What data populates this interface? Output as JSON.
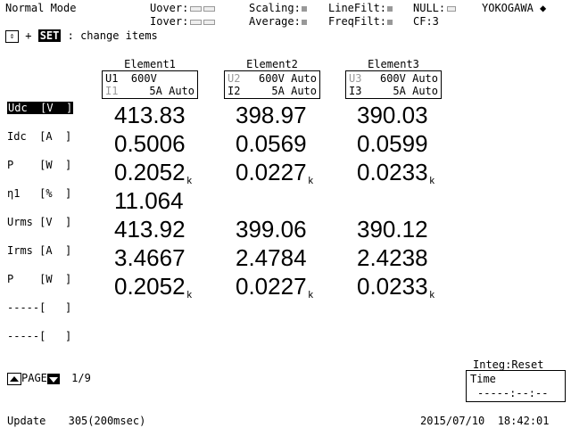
{
  "status": {
    "mode": "Normal Mode",
    "uover_label": "Uover:",
    "iover_label": "Iover:",
    "scaling_label": "Scaling:",
    "average_label": "Average:",
    "linefilt_label": "LineFilt:",
    "freqfilt_label": "FreqFilt:",
    "null_label": "NULL:",
    "cf_label": "CF:3",
    "brand": "YOKOGAWA"
  },
  "hint": {
    "set_key": "SET",
    "text": ": change items"
  },
  "elements": [
    {
      "title": "Element1",
      "u_label": "U1",
      "u_range": "600V",
      "i_label": "I1",
      "i_range": "5A Auto"
    },
    {
      "title": "Element2",
      "u_label": "U2",
      "u_range": "600V Auto",
      "i_label": "I2",
      "i_range": "5A Auto"
    },
    {
      "title": "Element3",
      "u_label": "U3",
      "u_range": "600V Auto",
      "i_label": "I3",
      "i_range": "5A Auto"
    }
  ],
  "rows": [
    {
      "label": "Udc  [V  ]",
      "values": [
        "413.83",
        "398.97",
        "390.03"
      ],
      "suffix": [
        "",
        "",
        ""
      ]
    },
    {
      "label": "Idc  [A  ]",
      "values": [
        "0.5006",
        "0.0569",
        "0.0599"
      ],
      "suffix": [
        "",
        "",
        ""
      ]
    },
    {
      "label": "P    [W  ]",
      "values": [
        "0.2052",
        "0.0227",
        "0.0233"
      ],
      "suffix": [
        "k",
        "k",
        "k"
      ]
    },
    {
      "label": "η1   [%  ]",
      "values": [
        "11.064",
        "",
        ""
      ],
      "suffix": [
        "",
        "",
        ""
      ]
    },
    {
      "label": "Urms [V  ]",
      "values": [
        "413.92",
        "399.06",
        "390.12"
      ],
      "suffix": [
        "",
        "",
        ""
      ]
    },
    {
      "label": "Irms [A  ]",
      "values": [
        "3.4667",
        "2.4784",
        "2.4238"
      ],
      "suffix": [
        "",
        "",
        ""
      ]
    },
    {
      "label": "P    [W  ]",
      "values": [
        "0.2052",
        "0.0227",
        "0.0233"
      ],
      "suffix": [
        "k",
        "k",
        "k"
      ]
    },
    {
      "label": "-----[   ]",
      "values": [
        "",
        "",
        ""
      ],
      "suffix": [
        "",
        "",
        ""
      ]
    },
    {
      "label": "-----[   ]",
      "values": [
        "",
        "",
        ""
      ],
      "suffix": [
        "",
        "",
        ""
      ]
    }
  ],
  "paging": {
    "label": "PAGE",
    "current": "1/9"
  },
  "integ": {
    "title": "Integ:Reset",
    "label": "Time",
    "value": "-----:--:--"
  },
  "footer": {
    "update_label": "Update",
    "update_value": "305(200msec)",
    "datetime": "2015/07/10  18:42:01"
  }
}
